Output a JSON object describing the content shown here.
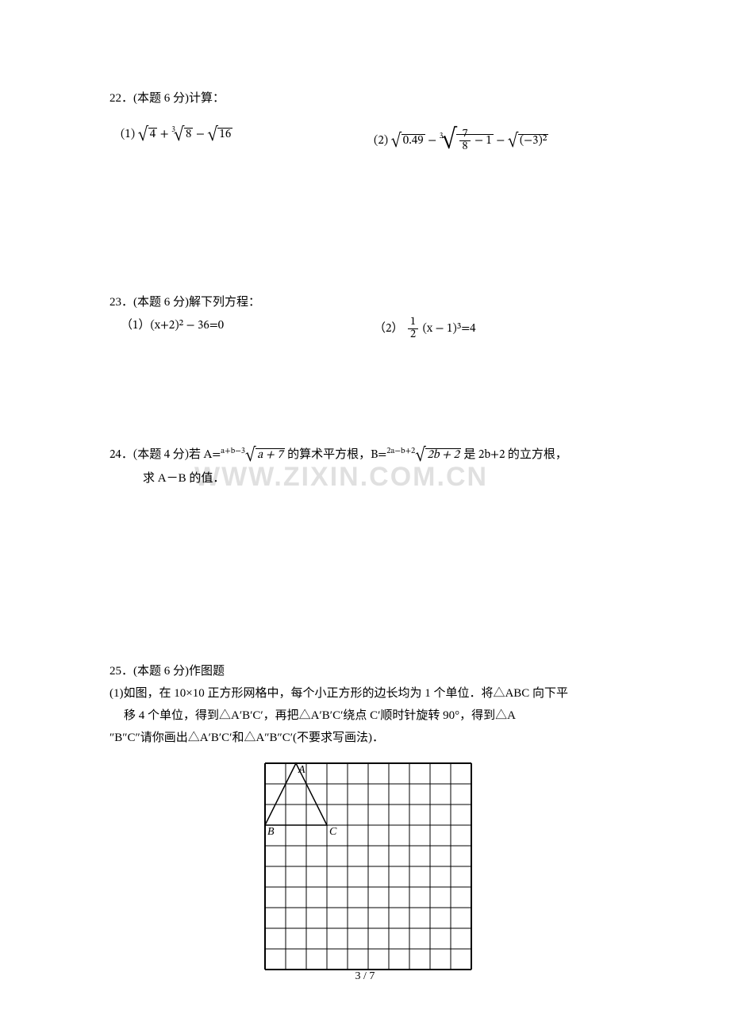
{
  "watermark": "WWW.ZIXIN.COM.CN",
  "pagenum": "3 / 7",
  "q22": {
    "header": "22．(本题 6 分)计算：",
    "p1": {
      "label": "(1)",
      "rad1": "4",
      "root2": "3",
      "rad2": "8",
      "rad3": "16"
    },
    "p2": {
      "label": "(2)",
      "rad1": "0.49",
      "root2": "3",
      "frac_num": "7",
      "frac_den": "8",
      "minus1": "1",
      "rad3": "(−3)²"
    }
  },
  "q23": {
    "header": "23．(本题 6 分)解下列方程：",
    "p1": {
      "label": "（1）",
      "body": "(x+2)² − 36=0"
    },
    "p2": {
      "label": "（2）",
      "frac_num": "1",
      "frac_den": "2",
      "body": "(x − 1)³=4"
    }
  },
  "q24": {
    "header_a": "24．(本题 4 分)若 A=",
    "exp_a": "a+b−3",
    "rad_a": "a + 7",
    "mid": " 的算术平方根，B=",
    "exp_b": "2a−b+2",
    "rad_b": "2b + 2",
    "tail": " 是 2b+2 的立方根，",
    "line2": "求 A－B 的值．"
  },
  "q25": {
    "header": "25．(本题 6 分)作图题",
    "line1": "(1)如图，在 10×10 正方形网格中，每个小正方形的边长均为 1 个单位．将△ABC 向下平",
    "line2": "移 4 个单位，得到△A′B′C′，再把△A′B′C′绕点 C′顺时针旋转 90°，得到△A",
    "line3": "″B″C″请你画出△A′B′C′和△A″B″C′(不要求写画法)．",
    "labelA": "A",
    "labelB": "B",
    "labelC": "C"
  },
  "grid": {
    "size": 260,
    "cells": 10,
    "stroke": "#000000",
    "stroke_width": 1,
    "outer_width": 2,
    "A": {
      "col": 1.5,
      "row": 0
    },
    "B": {
      "col": 0,
      "row": 3
    },
    "C": {
      "col": 3,
      "row": 3
    }
  }
}
